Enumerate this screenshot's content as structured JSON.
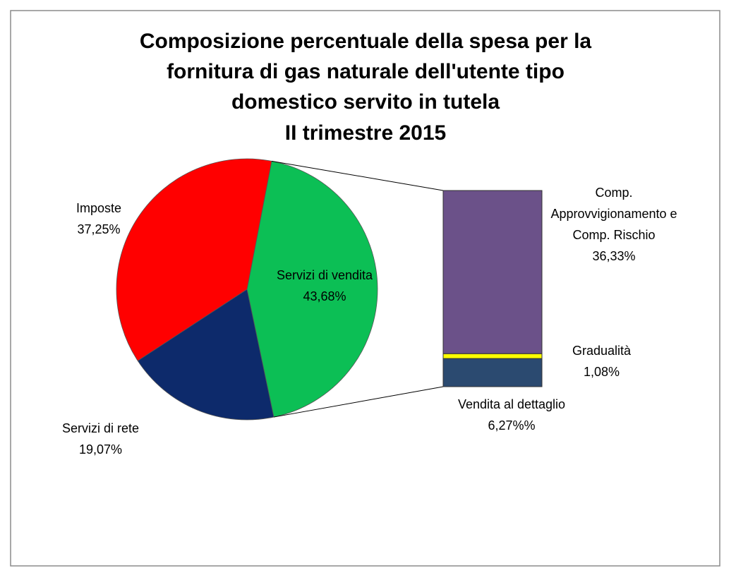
{
  "chart_data": {
    "type": "pie-of-bar",
    "title": [
      "Composizione percentuale della spesa per la",
      "fornitura di gas naturale dell'utente tipo",
      "domestico servito in tutela",
      "II trimestre 2015"
    ],
    "pie": {
      "categories": [
        "Servizi di vendita",
        "Servizi di rete",
        "Imposte"
      ],
      "values": [
        43.68,
        19.07,
        37.25
      ],
      "value_labels": [
        "43,68%",
        "19,07%",
        "37,25%"
      ],
      "colors": [
        "#0cbf55",
        "#0d2a6b",
        "#ff0000"
      ]
    },
    "bar": {
      "categories": [
        "Vendita al dettaglio",
        "Gradualità",
        "Comp. Approvvigionamento e  Comp. Rischio"
      ],
      "values": [
        6.27,
        1.08,
        36.33
      ],
      "value_labels": [
        "6,27%%",
        "1,08%",
        "36,33%"
      ],
      "colors": [
        "#2b4a70",
        "#ffff00",
        "#6b5189"
      ]
    }
  }
}
